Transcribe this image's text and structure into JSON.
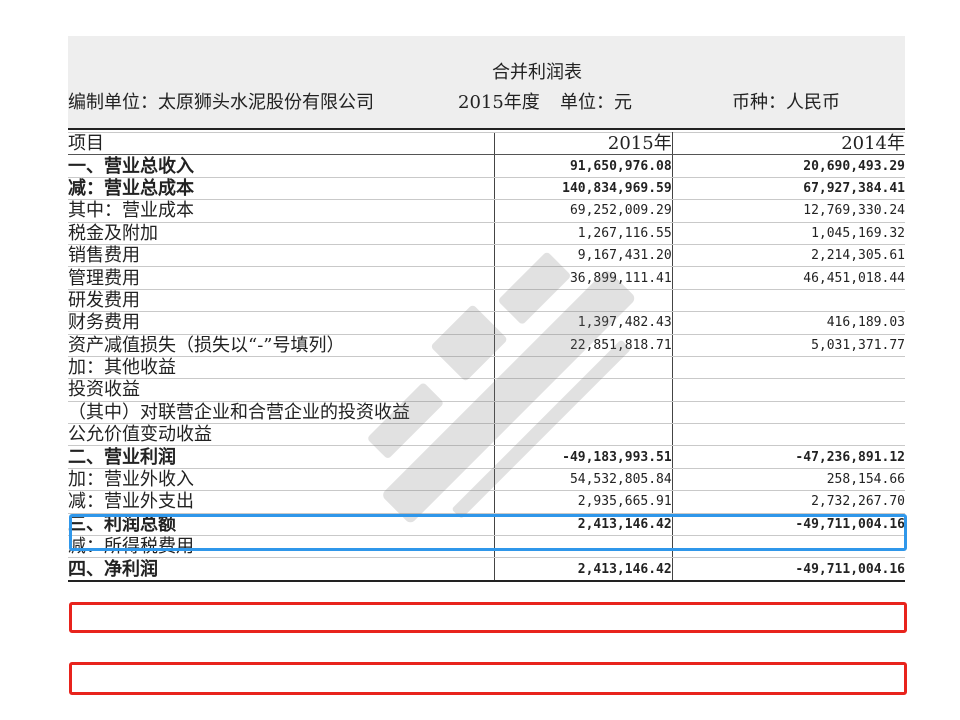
{
  "header": {
    "title": "合并利润表",
    "company": "编制单位：太原狮头水泥股份有限公司",
    "year": "2015年度",
    "unit": "单位：元",
    "currency": "币种：人民币"
  },
  "table": {
    "columns": [
      "项目",
      "2015年",
      "2014年"
    ],
    "rows": [
      {
        "label": "一、营业总收入",
        "v2015": "91,650,976.08",
        "v2014": "20,690,493.29",
        "bold": true,
        "indent": 0
      },
      {
        "label": "减：营业总成本",
        "v2015": "140,834,969.59",
        "v2014": "67,927,384.41",
        "bold": true,
        "indent": 0
      },
      {
        "label": "其中：营业成本",
        "v2015": "69,252,009.29",
        "v2014": "12,769,330.24",
        "bold": false,
        "indent": 0
      },
      {
        "label": "税金及附加",
        "v2015": "1,267,116.55",
        "v2014": "1,045,169.32",
        "bold": false,
        "indent": 1
      },
      {
        "label": "销售费用",
        "v2015": "9,167,431.20",
        "v2014": "2,214,305.61",
        "bold": false,
        "indent": 1
      },
      {
        "label": "管理费用",
        "v2015": "36,899,111.41",
        "v2014": "46,451,018.44",
        "bold": false,
        "indent": 1
      },
      {
        "label": "研发费用",
        "v2015": "",
        "v2014": "",
        "bold": false,
        "indent": 1
      },
      {
        "label": "财务费用",
        "v2015": "1,397,482.43",
        "v2014": "416,189.03",
        "bold": false,
        "indent": 1
      },
      {
        "label": "资产减值损失（损失以“-”号填列）",
        "v2015": "22,851,818.71",
        "v2014": "5,031,371.77",
        "bold": false,
        "indent": 2
      },
      {
        "label": "加：其他收益",
        "v2015": "",
        "v2014": "",
        "bold": false,
        "indent": 3
      },
      {
        "label": "投资收益",
        "v2015": "",
        "v2014": "",
        "bold": false,
        "indent": 4
      },
      {
        "label": "（其中）对联营企业和合营企业的投资收益",
        "v2015": "",
        "v2014": "",
        "bold": false,
        "indent": 0
      },
      {
        "label": "公允价值变动收益",
        "v2015": "",
        "v2014": "",
        "bold": false,
        "indent": 5
      },
      {
        "label": "二、营业利润",
        "v2015": "-49,183,993.51",
        "v2014": "-47,236,891.12",
        "bold": true,
        "indent": 0,
        "highlight": "blue"
      },
      {
        "label": "加：营业外收入",
        "v2015": "54,532,805.84",
        "v2014": "258,154.66",
        "bold": false,
        "indent": 0
      },
      {
        "label": "减：营业外支出",
        "v2015": "2,935,665.91",
        "v2014": "2,732,267.70",
        "bold": false,
        "indent": 0
      },
      {
        "label": "三、利润总额",
        "v2015": "2,413,146.42",
        "v2014": "-49,711,004.16",
        "bold": true,
        "indent": 0,
        "highlight": "red"
      },
      {
        "label": "减：所得税费用",
        "v2015": "",
        "v2014": "",
        "bold": false,
        "indent": 0
      },
      {
        "label": "四、净利润",
        "v2015": "2,413,146.42",
        "v2014": "-49,711,004.16",
        "bold": true,
        "indent": 0,
        "highlight": "red"
      }
    ]
  },
  "colors": {
    "highlight_blue": "#2f97ea",
    "highlight_red": "#e8231c",
    "header_band": "#eeeeee"
  }
}
